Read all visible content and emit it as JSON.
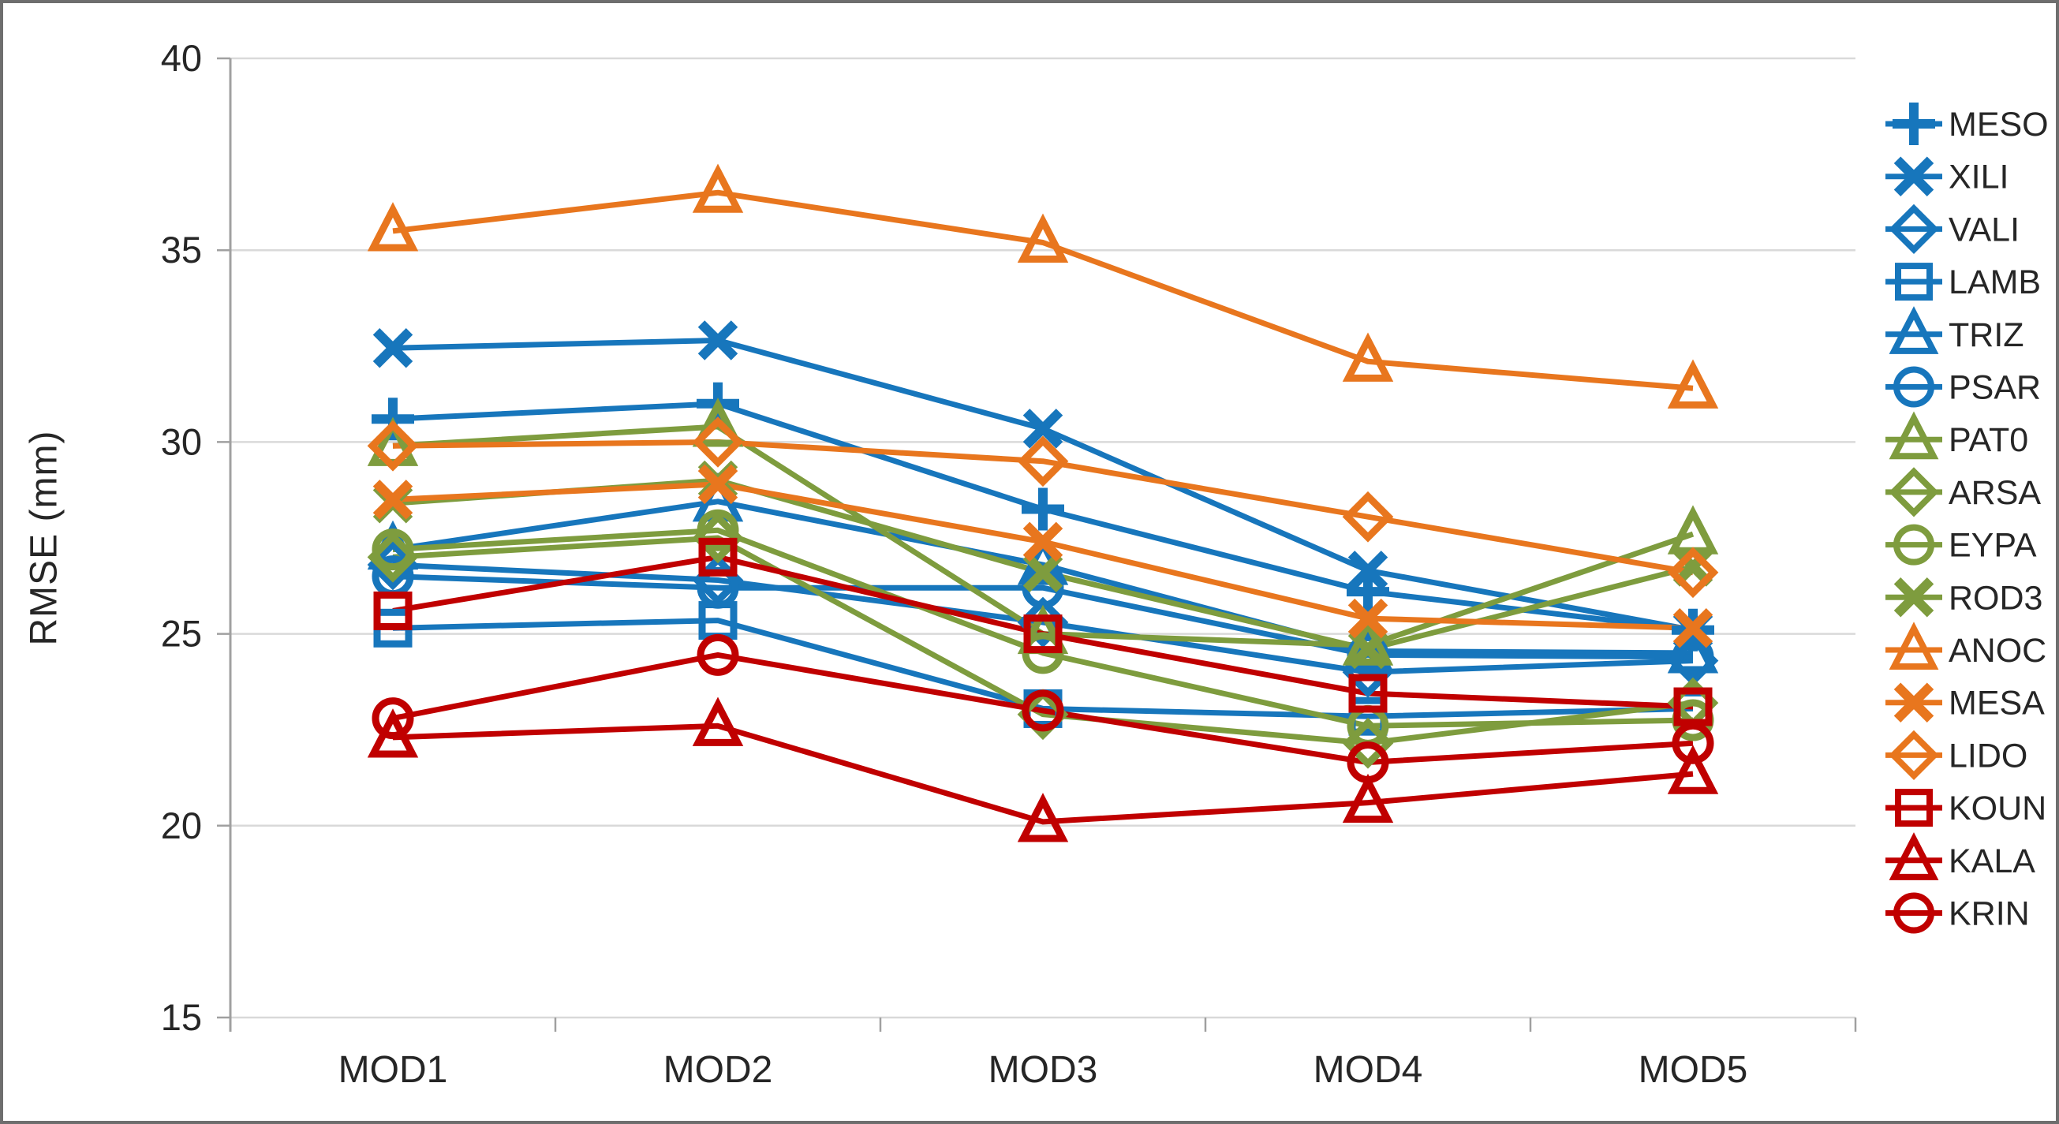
{
  "figure": {
    "kind": "line chart",
    "border_color": "#6e6e6e",
    "background": "#ffffff"
  },
  "palette": {
    "blue": "#1776BC",
    "green": "#7E9C3E",
    "orange": "#E8761E",
    "red": "#C00000",
    "gridline": "#D9D9D9",
    "axis": "#A0A0A0",
    "text": "#262626"
  },
  "chart_data": {
    "type": "line",
    "title": "",
    "xlabel": "",
    "ylabel": "RMSE (mm)",
    "categories": [
      "MOD1",
      "MOD2",
      "MOD3",
      "MOD4",
      "MOD5"
    ],
    "ylim": [
      15,
      40
    ],
    "yticks": [
      40,
      35,
      30,
      25,
      20,
      15
    ],
    "grid": true,
    "legend_position": "right",
    "series": [
      {
        "name": "MESO",
        "color": "#1776BC",
        "marker": "plus",
        "values": [
          30.6,
          31.0,
          28.25,
          26.1,
          25.1
        ]
      },
      {
        "name": "XILI",
        "color": "#1776BC",
        "marker": "x",
        "values": [
          32.45,
          32.65,
          30.35,
          26.65,
          25.1
        ]
      },
      {
        "name": "VALI",
        "color": "#1776BC",
        "marker": "diamond",
        "values": [
          26.8,
          26.4,
          25.3,
          24.0,
          24.3
        ]
      },
      {
        "name": "LAMB",
        "color": "#1776BC",
        "marker": "square",
        "values": [
          25.15,
          25.35,
          23.05,
          22.85,
          23.05
        ]
      },
      {
        "name": "TRIZ",
        "color": "#1776BC",
        "marker": "triangle",
        "values": [
          27.2,
          28.45,
          26.8,
          24.55,
          24.5
        ]
      },
      {
        "name": "PSAR",
        "color": "#1776BC",
        "marker": "circle",
        "values": [
          26.5,
          26.2,
          26.2,
          24.45,
          24.4
        ]
      },
      {
        "name": "PAT0",
        "color": "#7E9C3E",
        "marker": "triangle",
        "values": [
          29.9,
          30.4,
          25.0,
          24.7,
          27.6
        ]
      },
      {
        "name": "ARSA",
        "color": "#7E9C3E",
        "marker": "diamond",
        "values": [
          27.0,
          27.5,
          22.9,
          22.15,
          23.2
        ]
      },
      {
        "name": "EYPA",
        "color": "#7E9C3E",
        "marker": "circle",
        "values": [
          27.2,
          27.7,
          24.5,
          22.6,
          22.75
        ]
      },
      {
        "name": "ROD3",
        "color": "#7E9C3E",
        "marker": "x",
        "values": [
          28.4,
          29.0,
          26.6,
          24.6,
          26.75
        ]
      },
      {
        "name": "ANOC",
        "color": "#E8761E",
        "marker": "triangle",
        "values": [
          35.5,
          36.5,
          35.2,
          32.1,
          31.4
        ]
      },
      {
        "name": "MESA",
        "color": "#E8761E",
        "marker": "x",
        "values": [
          28.5,
          28.9,
          27.4,
          25.4,
          25.15
        ]
      },
      {
        "name": "LIDO",
        "color": "#E8761E",
        "marker": "diamond",
        "values": [
          29.9,
          30.0,
          29.5,
          28.05,
          26.6
        ]
      },
      {
        "name": "KOUN",
        "color": "#C00000",
        "marker": "square",
        "values": [
          25.6,
          27.0,
          25.0,
          23.45,
          23.1
        ]
      },
      {
        "name": "KALA",
        "color": "#C00000",
        "marker": "triangle",
        "values": [
          22.3,
          22.6,
          20.1,
          20.6,
          21.35
        ]
      },
      {
        "name": "KRIN",
        "color": "#C00000",
        "marker": "circle",
        "values": [
          22.8,
          24.45,
          23.0,
          21.65,
          22.15
        ]
      }
    ]
  }
}
